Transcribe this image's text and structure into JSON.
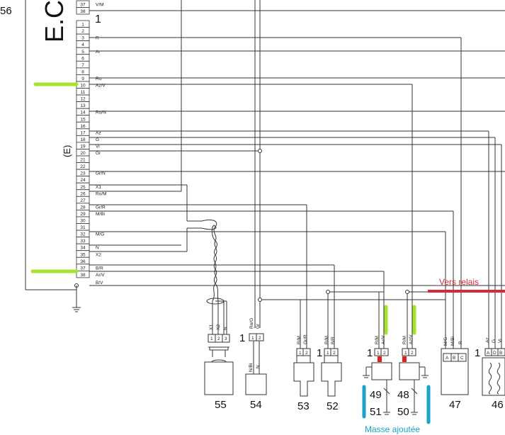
{
  "ecu": {
    "side_number": "56",
    "title": "E.C",
    "connector_mark": "(E)",
    "pins_top": [
      {
        "n": "37",
        "label": "V/M"
      },
      {
        "n": "38",
        "label": ""
      }
    ],
    "connector_one": "1",
    "pins": [
      {
        "n": "1",
        "label": ""
      },
      {
        "n": "2",
        "label": ""
      },
      {
        "n": "3",
        "label": "R"
      },
      {
        "n": "4",
        "label": ""
      },
      {
        "n": "5",
        "label": "Ar"
      },
      {
        "n": "6",
        "label": ""
      },
      {
        "n": "7",
        "label": ""
      },
      {
        "n": "8",
        "label": ""
      },
      {
        "n": "9",
        "label": "Ro"
      },
      {
        "n": "10",
        "label": "Az/V"
      },
      {
        "n": "11",
        "label": ""
      },
      {
        "n": "12",
        "label": ""
      },
      {
        "n": "13",
        "label": ""
      },
      {
        "n": "14",
        "label": "Ro/N"
      },
      {
        "n": "15",
        "label": ""
      },
      {
        "n": "16",
        "label": ""
      },
      {
        "n": "17",
        "label": "Az"
      },
      {
        "n": "18",
        "label": "G"
      },
      {
        "n": "19",
        "label": "Vi"
      },
      {
        "n": "20",
        "label": "Gr"
      },
      {
        "n": "21",
        "label": ""
      },
      {
        "n": "22",
        "label": ""
      },
      {
        "n": "23",
        "label": "Gr/N"
      },
      {
        "n": "24",
        "label": ""
      },
      {
        "n": "25",
        "label": "X1"
      },
      {
        "n": "26",
        "label": "Ro/M"
      },
      {
        "n": "27",
        "label": ""
      },
      {
        "n": "28",
        "label": "Gr/R"
      },
      {
        "n": "29",
        "label": "M/Bi"
      },
      {
        "n": "30",
        "label": ""
      },
      {
        "n": "31",
        "label": ""
      },
      {
        "n": "32",
        "label": "M/G"
      },
      {
        "n": "33",
        "label": ""
      },
      {
        "n": "34",
        "label": "N"
      },
      {
        "n": "35",
        "label": "X2"
      },
      {
        "n": "36",
        "label": ""
      },
      {
        "n": "37",
        "label": "B/R"
      },
      {
        "n": "38",
        "label": "Ar/V"
      }
    ],
    "bottom_label": "B/V"
  },
  "annotations": {
    "vers_relais": "Vers relais",
    "masse_ajoutee": "Masse ajoutée"
  },
  "components": {
    "c55": {
      "id": "55",
      "wires": [
        "X1",
        "X2",
        "N"
      ],
      "pins": [
        "1",
        "2",
        "3"
      ]
    },
    "c54": {
      "id": "54",
      "conn": "1",
      "wires": [
        "Ro/G",
        "Gr"
      ],
      "pins": [
        "1",
        "2"
      ],
      "body_wires": [
        "N/Bi",
        "N"
      ]
    },
    "c53": {
      "id": "53",
      "conn": "1",
      "wires": [
        "R/M",
        "Gr/R"
      ],
      "pins": [
        "1",
        "2"
      ]
    },
    "c52": {
      "id": "52",
      "conn": "1",
      "wires": [
        "R/M",
        "B/R"
      ],
      "pins": [
        "1",
        "2"
      ]
    },
    "c49": {
      "id": "49",
      "ground": "51",
      "conn": "1",
      "wires": [
        "R/M",
        "Ar/V"
      ],
      "pins": [
        "1",
        "2"
      ]
    },
    "c48": {
      "id": "48",
      "ground": "50",
      "wires": [
        "R/M",
        "Az/V"
      ],
      "pins": [
        "1",
        "2"
      ]
    },
    "c47": {
      "id": "47",
      "wires": [
        "M/G",
        "M/Bi",
        "R"
      ],
      "pins": [
        "A",
        "B",
        "C"
      ]
    },
    "c46": {
      "id": "46",
      "conn": "1",
      "wires": [
        "Az",
        "G",
        "Vi"
      ],
      "pins": [
        "A",
        "D",
        "B"
      ]
    }
  },
  "colors": {
    "highlight_green": "#a6e22e",
    "relay_red": "#d42a3a",
    "ground_blue": "#1aa3c8",
    "marker_red": "#e02020"
  }
}
